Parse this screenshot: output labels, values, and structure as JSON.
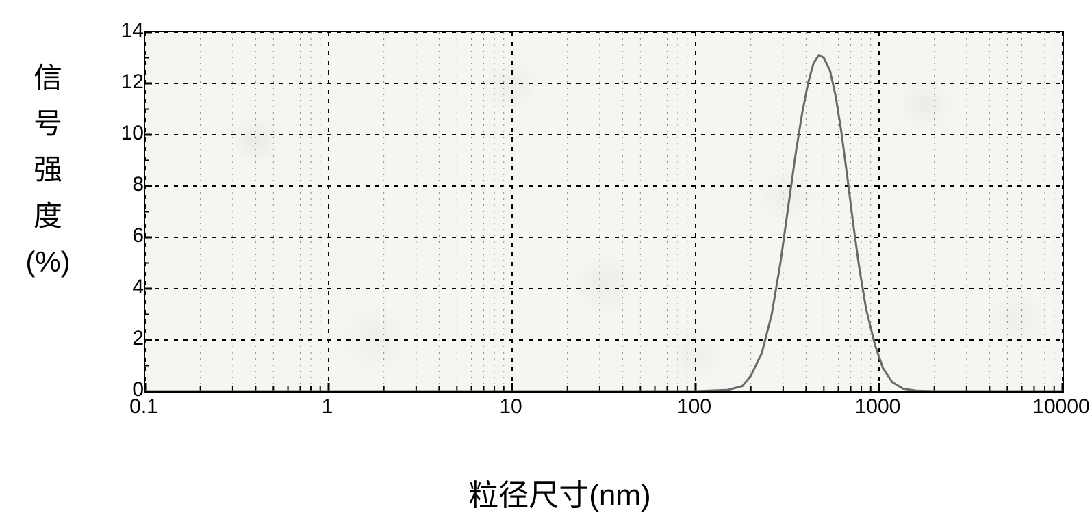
{
  "chart": {
    "type": "line",
    "y_label_chars": [
      "信",
      "号",
      "强",
      "度"
    ],
    "y_label_unit": "(%)",
    "x_label": "粒径尺寸(nm)",
    "background_color": "#f5f5f2",
    "border_color": "#000000",
    "grid_major_color": "#000000",
    "grid_minor_color": "#8a8a8a",
    "line_color": "#6a6a6a",
    "line_width": 3,
    "title_fontsize": 44,
    "y_label_fontsize": 42,
    "tick_fontsize": 30,
    "x_scale": "log",
    "xlim": [
      0.1,
      10000
    ],
    "ylim": [
      0,
      14
    ],
    "y_ticks": [
      0,
      2,
      4,
      6,
      8,
      10,
      12,
      14
    ],
    "x_ticks": [
      0.1,
      1,
      10,
      100,
      1000,
      10000
    ],
    "x_minor_ticks_per_decade": [
      2,
      3,
      4,
      5,
      6,
      7,
      8,
      9
    ],
    "series": {
      "name": "particle-size-distribution",
      "points": [
        [
          0.1,
          0
        ],
        [
          1,
          0
        ],
        [
          10,
          0
        ],
        [
          50,
          0
        ],
        [
          100,
          0
        ],
        [
          150,
          0.05
        ],
        [
          180,
          0.2
        ],
        [
          200,
          0.6
        ],
        [
          230,
          1.5
        ],
        [
          260,
          3.0
        ],
        [
          290,
          5.0
        ],
        [
          320,
          7.2
        ],
        [
          350,
          9.2
        ],
        [
          380,
          10.8
        ],
        [
          410,
          12.0
        ],
        [
          440,
          12.8
        ],
        [
          470,
          13.1
        ],
        [
          500,
          13.0
        ],
        [
          540,
          12.5
        ],
        [
          580,
          11.5
        ],
        [
          620,
          10.2
        ],
        [
          670,
          8.4
        ],
        [
          720,
          6.6
        ],
        [
          780,
          4.8
        ],
        [
          850,
          3.2
        ],
        [
          950,
          1.8
        ],
        [
          1050,
          0.9
        ],
        [
          1180,
          0.35
        ],
        [
          1350,
          0.1
        ],
        [
          1600,
          0.02
        ],
        [
          2000,
          0
        ],
        [
          5000,
          0
        ],
        [
          10000,
          0
        ]
      ]
    }
  }
}
